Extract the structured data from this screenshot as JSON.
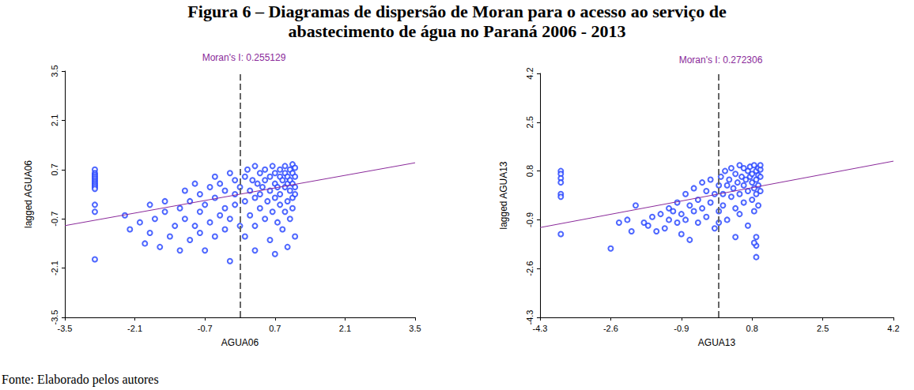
{
  "figure": {
    "title": [
      "Figura 6 – Diagramas de dispersão de Moran para o acesso ao serviço de",
      "abastecimento de água no Paraná 2006 - 2013"
    ],
    "source": "Fonte: Elaborado pelos autores"
  },
  "chart_data": [
    {
      "type": "scatter",
      "title": "Moran's I: 0.255129",
      "x_label": "AGUA06",
      "y_label": "lagged AGUA06",
      "xlim": [
        -3.5,
        3.5
      ],
      "xticks": [
        -3.5,
        -2.1,
        -0.7,
        0.7,
        2.1,
        3.5
      ],
      "ylim": [
        -3.5,
        3.5
      ],
      "yticks": [
        -3.5,
        -2.1,
        -0.7,
        0.7,
        2.1,
        3.5
      ],
      "grid": false,
      "color": "#2040ff",
      "marker": "circle_open",
      "regression": {
        "slope": 0.255129,
        "color": "#8a2a9a"
      },
      "mean_line": {
        "x": 0,
        "line_style": "dashed"
      },
      "points": [
        [
          -2.9,
          0.7
        ],
        [
          -2.9,
          0.6
        ],
        [
          -2.9,
          0.55
        ],
        [
          -2.9,
          0.5
        ],
        [
          -2.9,
          0.45
        ],
        [
          -2.9,
          0.4
        ],
        [
          -2.9,
          0.35
        ],
        [
          -2.9,
          0.3
        ],
        [
          -2.9,
          0.25
        ],
        [
          -2.9,
          0.2
        ],
        [
          -2.9,
          0.15
        ],
        [
          -2.9,
          -0.3
        ],
        [
          -2.9,
          -0.5
        ],
        [
          -2.9,
          -1.85
        ],
        [
          -2.3,
          -0.6
        ],
        [
          -2.2,
          -1.0
        ],
        [
          -2.0,
          -0.8
        ],
        [
          -1.9,
          -1.4
        ],
        [
          -1.8,
          -0.3
        ],
        [
          -1.8,
          -1.1
        ],
        [
          -1.7,
          -0.7
        ],
        [
          -1.6,
          -1.5
        ],
        [
          -1.5,
          -0.5
        ],
        [
          -1.5,
          -0.2
        ],
        [
          -1.4,
          -1.2
        ],
        [
          -1.3,
          -0.9
        ],
        [
          -1.2,
          -0.4
        ],
        [
          -1.2,
          -1.6
        ],
        [
          -1.1,
          0.1
        ],
        [
          -1.1,
          -0.7
        ],
        [
          -1.0,
          -1.3
        ],
        [
          -1.0,
          -0.2
        ],
        [
          -0.9,
          0.3
        ],
        [
          -0.9,
          -0.9
        ],
        [
          -0.8,
          -0.5
        ],
        [
          -0.8,
          -1.1
        ],
        [
          -0.8,
          0.0
        ],
        [
          -0.7,
          -1.6
        ],
        [
          -0.7,
          -0.3
        ],
        [
          -0.6,
          0.2
        ],
        [
          -0.6,
          -0.8
        ],
        [
          -0.5,
          0.5
        ],
        [
          -0.5,
          -0.1
        ],
        [
          -0.5,
          -1.2
        ],
        [
          -0.4,
          -0.6
        ],
        [
          -0.4,
          0.3
        ],
        [
          -0.3,
          -1.0
        ],
        [
          -0.3,
          0.1
        ],
        [
          -0.3,
          -0.4
        ],
        [
          -0.2,
          0.6
        ],
        [
          -0.2,
          -0.7
        ],
        [
          -0.2,
          -1.9
        ],
        [
          -0.1,
          0.0
        ],
        [
          -0.1,
          -0.3
        ],
        [
          -0.1,
          0.4
        ],
        [
          0.0,
          -0.9
        ],
        [
          0.0,
          0.2
        ],
        [
          0.1,
          0.5
        ],
        [
          0.1,
          -0.2
        ],
        [
          0.1,
          -1.2
        ],
        [
          0.15,
          0.7
        ],
        [
          0.2,
          0.1
        ],
        [
          0.2,
          -0.6
        ],
        [
          0.25,
          0.4
        ],
        [
          0.3,
          0.8
        ],
        [
          0.3,
          -0.1
        ],
        [
          0.3,
          -0.9
        ],
        [
          0.35,
          0.3
        ],
        [
          0.4,
          0.6
        ],
        [
          0.4,
          -0.4
        ],
        [
          0.4,
          0.0
        ],
        [
          0.45,
          0.2
        ],
        [
          0.5,
          0.7
        ],
        [
          0.5,
          -0.7
        ],
        [
          0.5,
          0.4
        ],
        [
          0.55,
          -0.2
        ],
        [
          0.6,
          0.5
        ],
        [
          0.6,
          0.1
        ],
        [
          0.6,
          -1.3
        ],
        [
          0.65,
          0.8
        ],
        [
          0.65,
          -0.5
        ],
        [
          0.7,
          0.3
        ],
        [
          0.7,
          0.6
        ],
        [
          0.7,
          -0.1
        ],
        [
          0.75,
          0.2
        ],
        [
          0.75,
          -0.8
        ],
        [
          0.8,
          0.5
        ],
        [
          0.8,
          0.7
        ],
        [
          0.8,
          -0.3
        ],
        [
          0.8,
          0.0
        ],
        [
          0.85,
          0.4
        ],
        [
          0.85,
          -1.0
        ],
        [
          0.9,
          0.6
        ],
        [
          0.9,
          0.2
        ],
        [
          0.9,
          -0.5
        ],
        [
          0.9,
          0.8
        ],
        [
          0.95,
          0.3
        ],
        [
          0.95,
          -0.2
        ],
        [
          0.95,
          0.5
        ],
        [
          1.0,
          0.7
        ],
        [
          1.0,
          0.1
        ],
        [
          1.0,
          -0.7
        ],
        [
          1.0,
          0.4
        ],
        [
          1.05,
          0.6
        ],
        [
          1.05,
          -0.1
        ],
        [
          1.05,
          0.85
        ],
        [
          1.05,
          0.3
        ],
        [
          1.05,
          -0.4
        ],
        [
          1.1,
          0.5
        ],
        [
          1.1,
          0.2
        ],
        [
          1.1,
          0.75
        ],
        [
          1.1,
          -1.2
        ],
        [
          1.1,
          0.0
        ],
        [
          0.95,
          -1.5
        ],
        [
          0.3,
          -1.6
        ],
        [
          0.7,
          -1.7
        ]
      ]
    },
    {
      "type": "scatter",
      "title": "Moran's I: 0.272306",
      "x_label": "AGUA13",
      "y_label": "lagged AGUA13",
      "xlim": [
        -4.3,
        4.2
      ],
      "xticks": [
        -4.3,
        -2.6,
        -0.9,
        0.8,
        2.5,
        4.2
      ],
      "ylim": [
        -4.3,
        4.2
      ],
      "yticks": [
        -4.3,
        -2.6,
        -0.9,
        0.8,
        2.5,
        4.2
      ],
      "grid": false,
      "color": "#2040ff",
      "marker": "circle_open",
      "regression": {
        "slope": 0.272306,
        "color": "#8a2a9a"
      },
      "mean_line": {
        "x": 0,
        "line_style": "dashed"
      },
      "points": [
        [
          -3.8,
          0.8
        ],
        [
          -3.8,
          0.7
        ],
        [
          -3.8,
          0.55
        ],
        [
          -3.8,
          0.4
        ],
        [
          -3.8,
          0.0
        ],
        [
          -3.8,
          -0.1
        ],
        [
          -3.8,
          -1.4
        ],
        [
          -2.6,
          -1.9
        ],
        [
          -2.4,
          -1.0
        ],
        [
          -2.2,
          -0.9
        ],
        [
          -2.1,
          -1.3
        ],
        [
          -2.0,
          -0.4
        ],
        [
          -1.8,
          -1.0
        ],
        [
          -1.7,
          -1.1
        ],
        [
          -1.6,
          -0.8
        ],
        [
          -1.5,
          -1.3
        ],
        [
          -1.4,
          -0.7
        ],
        [
          -1.3,
          -1.2
        ],
        [
          -1.2,
          -0.5
        ],
        [
          -1.2,
          -0.9
        ],
        [
          -1.1,
          -0.6
        ],
        [
          -1.0,
          -1.0
        ],
        [
          -1.0,
          -0.3
        ],
        [
          -0.9,
          -0.7
        ],
        [
          -0.9,
          -1.4
        ],
        [
          -0.8,
          0.0
        ],
        [
          -0.8,
          -0.9
        ],
        [
          -0.7,
          -0.4
        ],
        [
          -0.7,
          -1.6
        ],
        [
          -0.6,
          -0.6
        ],
        [
          -0.6,
          0.2
        ],
        [
          -0.5,
          -0.2
        ],
        [
          -0.5,
          -1.0
        ],
        [
          -0.4,
          0.4
        ],
        [
          -0.4,
          -0.5
        ],
        [
          -0.3,
          -0.8
        ],
        [
          -0.3,
          0.1
        ],
        [
          -0.2,
          -0.3
        ],
        [
          -0.2,
          0.5
        ],
        [
          -0.1,
          -1.2
        ],
        [
          -0.1,
          0.0
        ],
        [
          0.0,
          0.3
        ],
        [
          0.0,
          -0.6
        ],
        [
          0.05,
          0.6
        ],
        [
          0.1,
          0.0
        ],
        [
          0.1,
          -0.4
        ],
        [
          0.15,
          0.8
        ],
        [
          0.2,
          0.3
        ],
        [
          0.2,
          -0.9
        ],
        [
          0.25,
          0.5
        ],
        [
          0.3,
          0.9
        ],
        [
          0.3,
          -0.1
        ],
        [
          0.35,
          0.2
        ],
        [
          0.4,
          0.7
        ],
        [
          0.4,
          -0.5
        ],
        [
          0.45,
          0.4
        ],
        [
          0.5,
          1.0
        ],
        [
          0.5,
          0.0
        ],
        [
          0.5,
          -0.7
        ],
        [
          0.55,
          0.6
        ],
        [
          0.6,
          0.3
        ],
        [
          0.6,
          0.9
        ],
        [
          0.6,
          -0.3
        ],
        [
          0.65,
          0.5
        ],
        [
          0.7,
          0.8
        ],
        [
          0.7,
          0.1
        ],
        [
          0.7,
          -1.1
        ],
        [
          0.75,
          0.6
        ],
        [
          0.75,
          0.95
        ],
        [
          0.8,
          0.4
        ],
        [
          0.8,
          -0.2
        ],
        [
          0.8,
          0.7
        ],
        [
          0.85,
          0.2
        ],
        [
          0.85,
          1.0
        ],
        [
          0.85,
          -0.6
        ],
        [
          0.9,
          0.5
        ],
        [
          0.9,
          0.8
        ],
        [
          0.9,
          0.0
        ],
        [
          0.9,
          -1.5
        ],
        [
          0.9,
          -2.2
        ],
        [
          0.95,
          0.65
        ],
        [
          0.95,
          0.3
        ],
        [
          0.95,
          0.9
        ],
        [
          0.95,
          -0.4
        ],
        [
          1.0,
          0.6
        ],
        [
          1.0,
          0.85
        ],
        [
          1.0,
          0.1
        ],
        [
          1.0,
          1.0
        ],
        [
          0.9,
          -1.8
        ],
        [
          0.85,
          -1.7
        ],
        [
          0.4,
          -1.5
        ],
        [
          0.0,
          -1.0
        ]
      ]
    }
  ]
}
